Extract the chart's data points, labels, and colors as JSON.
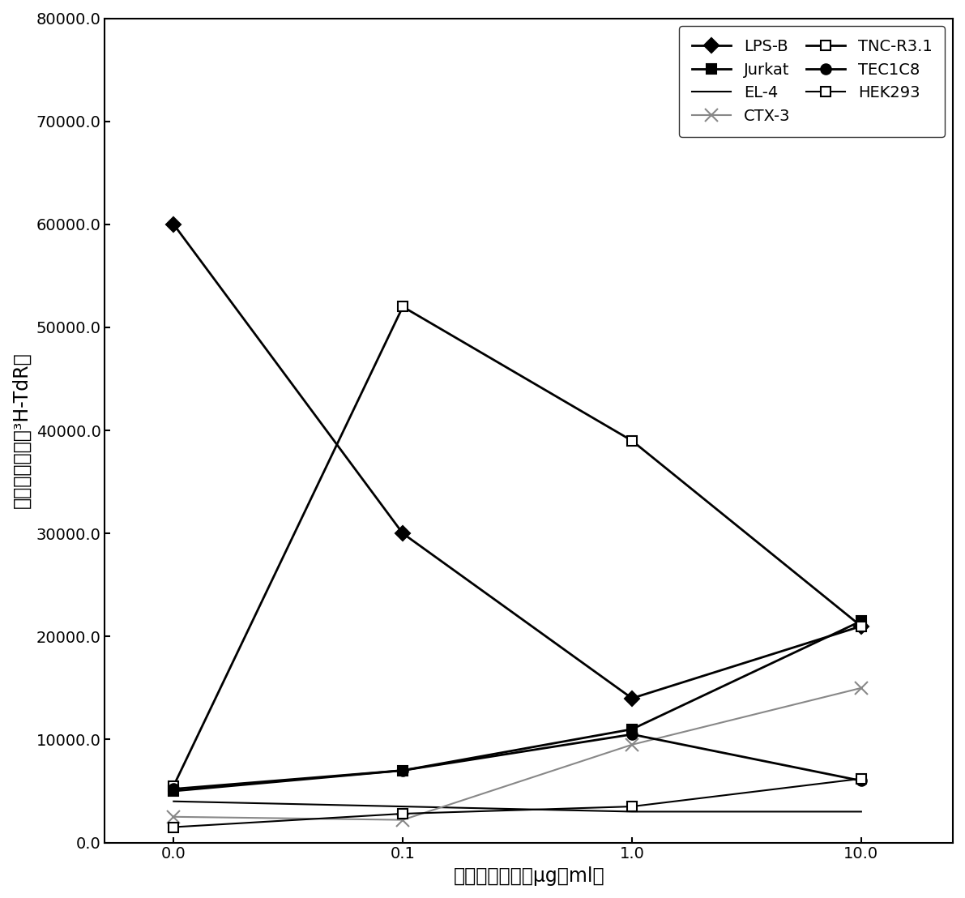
{
  "x_positions": [
    0,
    1,
    2,
    3
  ],
  "x_labels": [
    "0.0",
    "0.1",
    "1.0",
    "10.0"
  ],
  "series": [
    {
      "label": "LPS-B",
      "values": [
        60000,
        30000,
        14000,
        21000
      ],
      "color": "#000000",
      "marker": "D",
      "markersize": 9,
      "linewidth": 2.0,
      "mfc": "black",
      "mec": "black",
      "linestyle": "-"
    },
    {
      "label": "Jurkat",
      "values": [
        5000,
        7000,
        11000,
        21500
      ],
      "color": "#000000",
      "marker": "s",
      "markersize": 9,
      "linewidth": 2.0,
      "mfc": "black",
      "mec": "black",
      "linestyle": "-"
    },
    {
      "label": "EL-4",
      "values": [
        4000,
        3500,
        3000,
        3000
      ],
      "color": "#000000",
      "marker": "",
      "markersize": 0,
      "linewidth": 1.5,
      "mfc": "none",
      "mec": "black",
      "linestyle": "-"
    },
    {
      "label": "CTX-3",
      "values": [
        2500,
        2200,
        9500,
        15000
      ],
      "color": "#888888",
      "marker": "x",
      "markersize": 11,
      "linewidth": 1.5,
      "mfc": "#888888",
      "mec": "#888888",
      "linestyle": "-"
    },
    {
      "label": "TNC-R3.1",
      "values": [
        5500,
        52000,
        39000,
        21000
      ],
      "color": "#000000",
      "marker": "s",
      "markersize": 9,
      "linewidth": 2.0,
      "mfc": "white",
      "mec": "black",
      "linestyle": "-"
    },
    {
      "label": "TEC1C8",
      "values": [
        5200,
        7000,
        10500,
        6000
      ],
      "color": "#000000",
      "marker": "o",
      "markersize": 9,
      "linewidth": 2.0,
      "mfc": "black",
      "mec": "black",
      "linestyle": "-"
    },
    {
      "label": "HEK293",
      "values": [
        1500,
        2800,
        3500,
        6200
      ],
      "color": "#000000",
      "marker": "s",
      "markersize": 9,
      "linewidth": 1.5,
      "mfc": "white",
      "mec": "black",
      "linestyle": "-"
    }
  ],
  "xlabel": "强力霖素浓度（μg／ml）",
  "ylabel": "每分钟脉冲数（³H-TdR）",
  "ylim": [
    0,
    80000
  ],
  "yticks": [
    0.0,
    10000.0,
    20000.0,
    30000.0,
    40000.0,
    50000.0,
    60000.0,
    70000.0,
    80000.0
  ],
  "ytick_labels": [
    "0.0",
    "10000.0",
    "20000.0",
    "30000.0",
    "40000.0",
    "50000.0",
    "60000.0",
    "70000.0",
    "80000.0"
  ],
  "background_color": "#ffffff",
  "legend_fontsize": 14,
  "axis_fontsize": 17,
  "tick_fontsize": 14
}
